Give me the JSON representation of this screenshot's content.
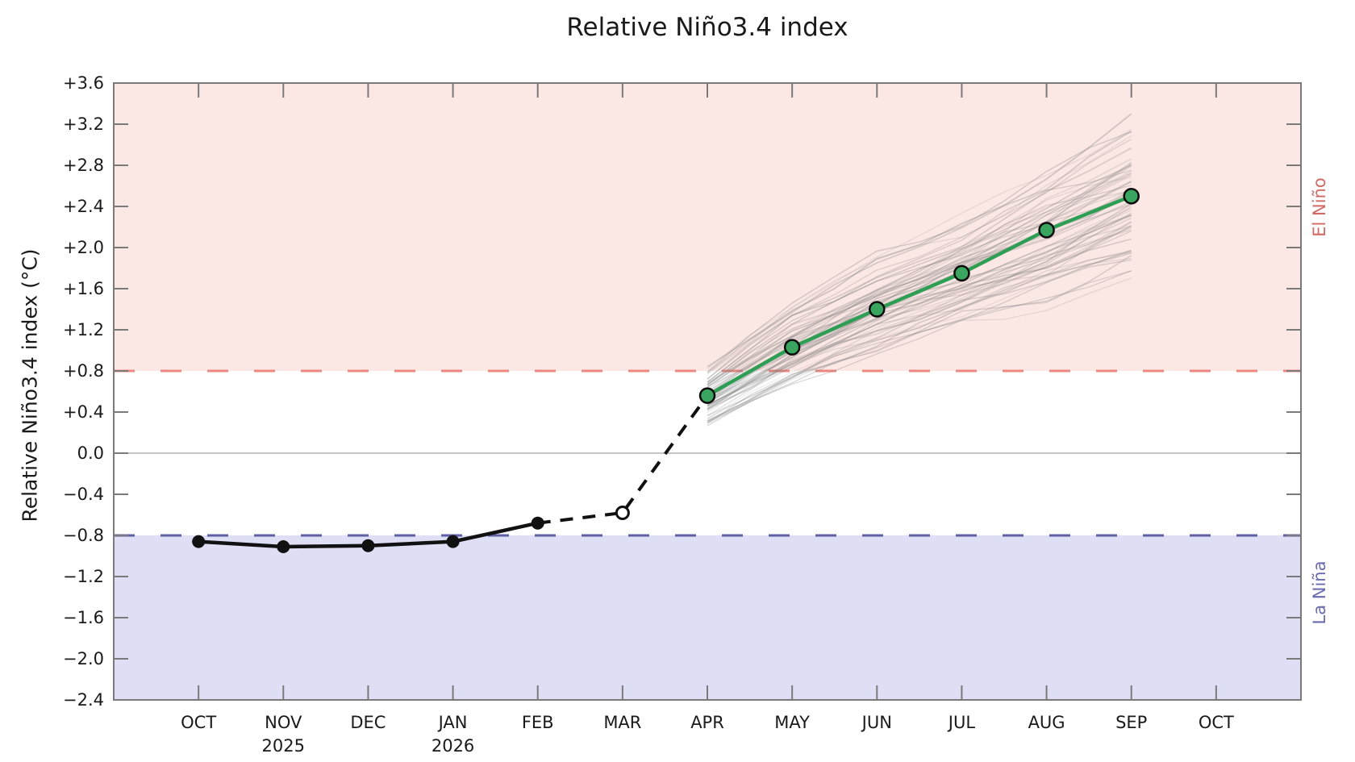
{
  "title": "Relative Niño3.4 index",
  "y_axis_label": "Relative Niño3.4 index (°C)",
  "region_labels": {
    "el_nino": "El Niño",
    "la_nina": "La Niña"
  },
  "colors": {
    "el_nino_band": "#fbe7e4",
    "la_nina_band": "#dedef4",
    "el_nino_threshold_line": "#ee8781",
    "la_nina_threshold_line": "#5f5fa5",
    "zero_line": "#b4b4b4",
    "axis_spine": "#7a7a7a",
    "observed_line": "#111111",
    "forecast_line": "#2f9e55",
    "forecast_marker_fill": "#3aa55e",
    "ensemble_line": "#7d7d7d",
    "el_nino_label": "#d26a64",
    "la_nina_label": "#6a6aae"
  },
  "chart_data": {
    "type": "line",
    "title": "Relative Niño3.4 index",
    "ylabel": "Relative Niño3.4 index (°C)",
    "ylim": [
      -2.4,
      3.6
    ],
    "ytick_values": [
      3.6,
      3.2,
      2.8,
      2.4,
      2.0,
      1.6,
      1.2,
      0.8,
      0.4,
      0.0,
      -0.4,
      -0.8,
      -1.2,
      -1.6,
      -2.0,
      -2.4
    ],
    "ytick_labels": [
      "+3.6",
      "+3.2",
      "+2.8",
      "+2.4",
      "+2.0",
      "+1.6",
      "+1.2",
      "+0.8",
      "+0.4",
      "0.0",
      "−0.4",
      "−0.8",
      "−1.2",
      "−1.6",
      "−2.0",
      "−2.4"
    ],
    "x_ticks": [
      {
        "month": "OCT",
        "year": ""
      },
      {
        "month": "NOV",
        "year": "2025"
      },
      {
        "month": "DEC",
        "year": ""
      },
      {
        "month": "JAN",
        "year": "2026"
      },
      {
        "month": "FEB",
        "year": ""
      },
      {
        "month": "MAR",
        "year": ""
      },
      {
        "month": "APR",
        "year": ""
      },
      {
        "month": "MAY",
        "year": ""
      },
      {
        "month": "JUN",
        "year": ""
      },
      {
        "month": "JUL",
        "year": ""
      },
      {
        "month": "AUG",
        "year": ""
      },
      {
        "month": "SEP",
        "year": ""
      },
      {
        "month": "OCT",
        "year": ""
      }
    ],
    "thresholds": {
      "el_nino": 0.8,
      "la_nina": -0.8,
      "zero": 0.0
    },
    "observed": {
      "name": "observed",
      "start_tick_index": 1,
      "months": [
        "OCT 2025",
        "NOV 2025",
        "DEC 2025",
        "JAN 2026",
        "FEB 2026"
      ],
      "values": [
        -0.86,
        -0.91,
        -0.9,
        -0.86,
        -0.68
      ]
    },
    "current_estimate": {
      "name": "current-month-estimate",
      "tick_index": 6,
      "month": "MAR 2026",
      "value": -0.58,
      "marker": "open-circle"
    },
    "forecast_mean": {
      "name": "forecast-mean",
      "start_tick_index": 7,
      "months": [
        "APR",
        "MAY",
        "JUN",
        "JUL",
        "AUG",
        "SEP"
      ],
      "values": [
        0.56,
        1.03,
        1.4,
        1.75,
        2.17,
        2.5
      ]
    },
    "ensemble": {
      "name": "ensemble-members",
      "start_tick_index": 7,
      "months": [
        "APR",
        "MAY",
        "JUN",
        "JUL",
        "AUG",
        "SEP"
      ],
      "envelope_min": [
        0.2,
        0.55,
        0.85,
        1.1,
        1.3,
        1.55
      ],
      "envelope_max": [
        0.85,
        1.5,
        1.95,
        2.35,
        2.85,
        3.3
      ],
      "member_count": 60
    }
  }
}
